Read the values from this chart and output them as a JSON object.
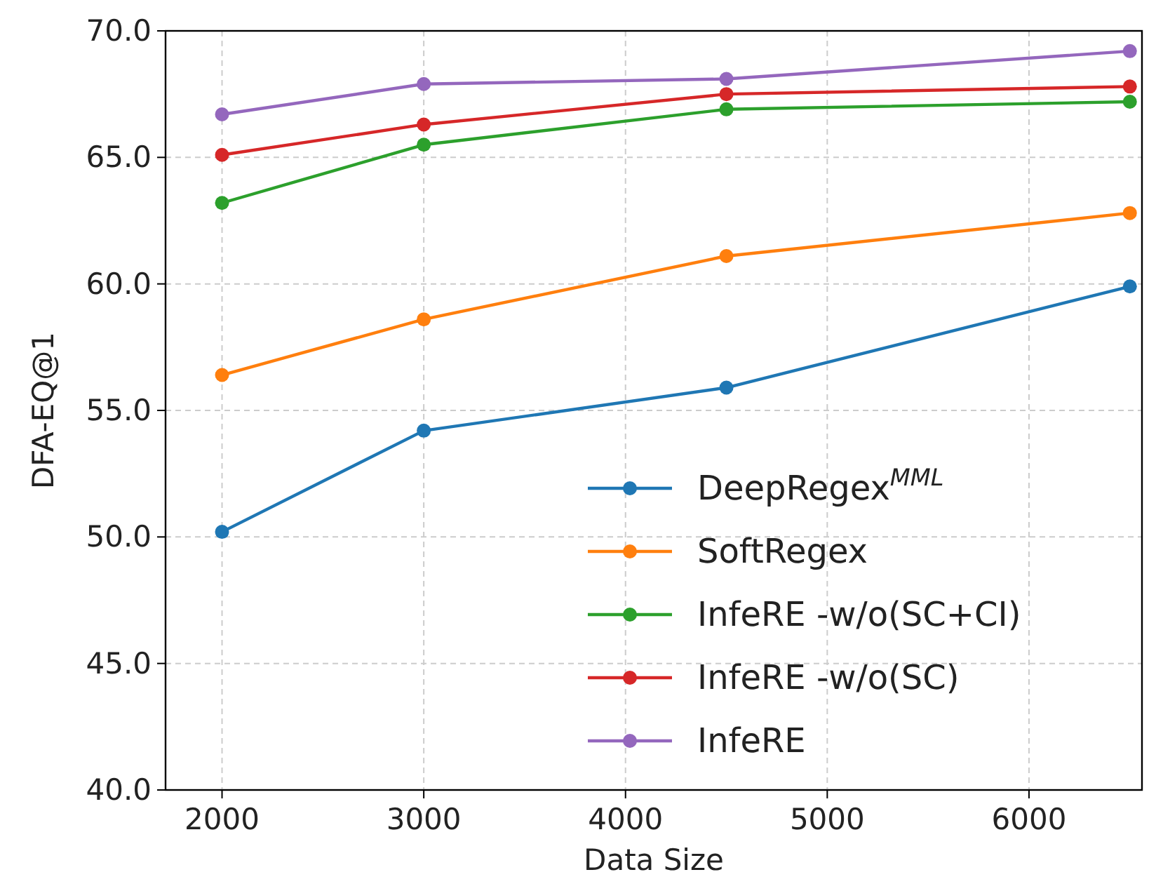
{
  "chart_data": {
    "type": "line",
    "xlabel": "Data Size",
    "ylabel": "DFA-EQ@1",
    "x": [
      2000,
      3000,
      4500,
      6500
    ],
    "series": [
      {
        "name": "DeepRegex$^{MML}$",
        "color": "#1f77b4",
        "values": [
          50.2,
          54.2,
          55.9,
          59.9
        ]
      },
      {
        "name": "SoftRegex",
        "color": "#ff7f0e",
        "values": [
          56.4,
          58.6,
          61.1,
          62.8
        ]
      },
      {
        "name": "InfeRE -w/o(SC+CI)",
        "color": "#2ca02c",
        "values": [
          63.2,
          65.5,
          66.9,
          67.2
        ]
      },
      {
        "name": "InfeRE -w/o(SC)",
        "color": "#d62728",
        "values": [
          65.1,
          66.3,
          67.5,
          67.8
        ]
      },
      {
        "name": "InfeRE",
        "color": "#9467bd",
        "values": [
          66.7,
          67.9,
          68.1,
          69.2
        ]
      }
    ],
    "xlim": [
      1720,
      6560
    ],
    "xticks": [
      2000,
      3000,
      4000,
      5000,
      6000
    ],
    "ylim": [
      40,
      70
    ],
    "yticks": [
      {
        "value": 40,
        "label": "40.0"
      },
      {
        "value": 45,
        "label": "45.0"
      },
      {
        "value": 50,
        "label": "50.0"
      },
      {
        "value": 55,
        "label": "55.0"
      },
      {
        "value": 60,
        "label": "60.0"
      },
      {
        "value": 65,
        "label": "65.0"
      },
      {
        "value": 70,
        "label": "70.0"
      }
    ],
    "grid": true,
    "legend": "bottom right",
    "marker": "circle",
    "line_style": "solid"
  }
}
